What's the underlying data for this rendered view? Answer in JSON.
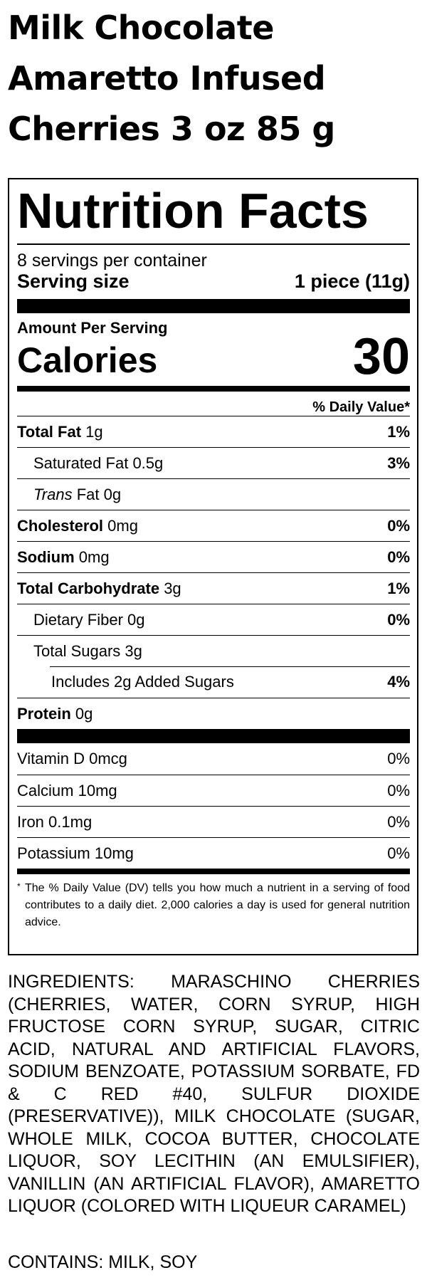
{
  "product_title": [
    "Milk Chocolate",
    "Amaretto Infused",
    "Cherries 3 oz 85 g"
  ],
  "nutrition": {
    "heading": "Nutrition Facts",
    "servings_per_container": "8 servings per container",
    "serving_size_label": "Serving size",
    "serving_size_value": "1 piece (11g)",
    "amount_per_serving": "Amount Per Serving",
    "calories_label": "Calories",
    "calories_value": "30",
    "daily_value_header": "% Daily Value*",
    "nutrients": [
      {
        "name": "Total Fat",
        "amount": "1g",
        "dv": "1%"
      },
      {
        "name": "Saturated Fat",
        "amount": "0.5g",
        "dv": "3%"
      },
      {
        "name": "Trans",
        "suffix": "Fat",
        "amount": "0g",
        "dv": ""
      },
      {
        "name": "Cholesterol",
        "amount": "0mg",
        "dv": "0%"
      },
      {
        "name": "Sodium",
        "amount": "0mg",
        "dv": "0%"
      },
      {
        "name": "Total Carbohydrate",
        "amount": "3g",
        "dv": "1%"
      },
      {
        "name": "Dietary Fiber",
        "amount": "0g",
        "dv": "0%"
      },
      {
        "name": "Total Sugars",
        "amount": "3g",
        "dv": ""
      },
      {
        "name": "Includes 2g Added Sugars",
        "amount": "",
        "dv": "4%"
      },
      {
        "name": "Protein",
        "amount": "0g",
        "dv": ""
      }
    ],
    "vitamins": [
      {
        "name": "Vitamin D",
        "amount": "0mcg",
        "dv": "0%"
      },
      {
        "name": "Calcium",
        "amount": "10mg",
        "dv": "0%"
      },
      {
        "name": "Iron",
        "amount": "0.1mg",
        "dv": "0%"
      },
      {
        "name": "Potassium",
        "amount": "10mg",
        "dv": "0%"
      }
    ],
    "footnote_marker": "*",
    "footnote": "The % Daily Value (DV) tells you how much a nutrient in a serving of food contributes to a daily diet. 2,000 calories a day is used for general nutrition advice."
  },
  "ingredients": "INGREDIENTS: MARASCHINO CHERRIES (CHERRIES, WATER, CORN SYRUP, HIGH FRUCTOSE CORN SYRUP, SUGAR, CITRIC ACID, NATURAL AND ARTIFICIAL FLAVORS, SODIUM BENZOATE, POTASSIUM SORBATE, FD & C RED #40, SULFUR DIOXIDE (PRESERVATIVE)), MILK CHOCOLATE (SUGAR, WHOLE MILK, COCOA BUTTER, CHOCOLATE LIQUOR, SOY LECITHIN (AN EMULSIFIER), VANILLIN (AN ARTIFICIAL FLAVOR), AMARETTO LIQUOR (COLORED WITH LIQUEUR CARAMEL)",
  "contains": "CONTAINS: MILK, SOY"
}
